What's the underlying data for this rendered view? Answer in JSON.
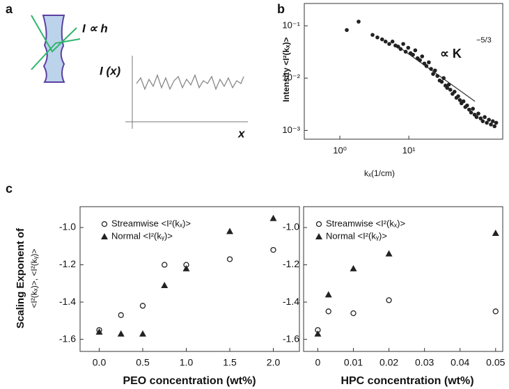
{
  "panel_labels": [
    "a",
    "b",
    "c"
  ],
  "schematic": {
    "relation": "I ∝ h",
    "ylabel": "I (x)",
    "xlabel": "x"
  },
  "chart_data": [
    {
      "type": "scatter",
      "ylabel": "Intensity <I²(kₓ)>",
      "xlabel": "kₓ(1/cm)",
      "xlog": true,
      "ylog": true,
      "color": "#222222",
      "marker": "dot",
      "xlim": [
        0.305,
        230
      ],
      "ylim": [
        0.00068,
        0.267
      ],
      "xticks": [
        {
          "value": 1,
          "label": "10⁰"
        },
        {
          "value": 10,
          "label": "10¹"
        }
      ],
      "yticks": [
        {
          "value": 0.1,
          "label": "10⁻¹"
        },
        {
          "value": 0.01,
          "label": "10⁻²"
        },
        {
          "value": 0.001,
          "label": "10⁻³"
        }
      ],
      "x": [
        1.26,
        1.87,
        2.98,
        3.5,
        4.1,
        4.6,
        5.2,
        5.8,
        6.4,
        7.0,
        7.6,
        8.3,
        9.0,
        9.8,
        10.6,
        11.5,
        12.4,
        13.4,
        14.5,
        15.6,
        16.8,
        18,
        19.5,
        21,
        22.5,
        24,
        26,
        28,
        30,
        32,
        34,
        36,
        38,
        40,
        43,
        46,
        49,
        52,
        55,
        58,
        62,
        66,
        70,
        75,
        80,
        85,
        90,
        96,
        102,
        110,
        118,
        126,
        135,
        145,
        155,
        165,
        175,
        185
      ],
      "values": [
        0.083,
        0.12,
        0.067,
        0.06,
        0.055,
        0.05,
        0.045,
        0.05,
        0.042,
        0.04,
        0.036,
        0.045,
        0.032,
        0.038,
        0.03,
        0.028,
        0.034,
        0.024,
        0.022,
        0.026,
        0.019,
        0.017,
        0.02,
        0.015,
        0.012,
        0.014,
        0.011,
        0.009,
        0.0085,
        0.01,
        0.0072,
        0.0065,
        0.0075,
        0.006,
        0.005,
        0.0055,
        0.0042,
        0.0045,
        0.0038,
        0.0033,
        0.0036,
        0.0028,
        0.003,
        0.0025,
        0.0022,
        0.0026,
        0.002,
        0.0018,
        0.0021,
        0.0017,
        0.0015,
        0.0018,
        0.0014,
        0.0016,
        0.0013,
        0.0015,
        0.0012,
        0.0014
      ],
      "reference_line": {
        "x": [
          6.7,
          91
        ],
        "values": [
          0.042,
          0.0036
        ]
      },
      "annotation": {
        "text": "∝ K",
        "exponent": "−5/3"
      }
    },
    {
      "type": "scatter",
      "ylabel": [
        "Scaling Exponent of",
        "<I²(kₓ)>, <I²(kᵧ)>"
      ],
      "xlabel": "PEO concentration (wt%)",
      "xlim": [
        -0.22,
        2.3
      ],
      "ylim": [
        -1.665,
        -0.888
      ],
      "xticks": [
        {
          "value": 0,
          "label": "0.0"
        },
        0.5,
        {
          "value": 1,
          "label": "1.0"
        },
        1.5,
        {
          "value": 2,
          "label": "2.0"
        }
      ],
      "yticks": [
        -1.6,
        -1.4,
        -1.2,
        {
          "value": -1,
          "label": "-1.0"
        }
      ],
      "x": [
        0,
        0.25,
        0.5,
        0.75,
        1.0,
        1.5,
        2.0
      ],
      "series": [
        {
          "name": "Streamwise <I²(kₓ)>",
          "marker": "circle",
          "color": "#222222",
          "values": [
            -1.55,
            -1.47,
            -1.42,
            -1.2,
            -1.2,
            -1.17,
            -1.12
          ]
        },
        {
          "name": "Normal <I²(kᵧ)>",
          "marker": "triangle",
          "color": "#222222",
          "values": [
            -1.56,
            -1.57,
            -1.57,
            -1.31,
            -1.22,
            -1.02,
            -0.95
          ]
        }
      ]
    },
    {
      "type": "scatter",
      "xlabel": "HPC concentration (wt%)",
      "xlim": [
        -0.004,
        0.052
      ],
      "ylim": [
        -1.665,
        -0.888
      ],
      "xticks": [
        0,
        0.01,
        0.02,
        0.03,
        0.04,
        0.05
      ],
      "yticks": [
        -1.6,
        -1.4,
        -1.2,
        {
          "value": -1,
          "label": "-1.0"
        }
      ],
      "x": [
        0,
        0.003,
        0.01,
        0.02,
        0.05
      ],
      "series": [
        {
          "name": "Streamwise <I²(kₓ)>",
          "marker": "circle",
          "color": "#222222",
          "values": [
            -1.55,
            -1.45,
            -1.46,
            -1.39,
            -1.45
          ]
        },
        {
          "name": "Normal <I²(kᵧ)>",
          "marker": "triangle",
          "color": "#222222",
          "values": [
            -1.57,
            -1.36,
            -1.22,
            -1.14,
            -1.03
          ]
        }
      ]
    }
  ]
}
